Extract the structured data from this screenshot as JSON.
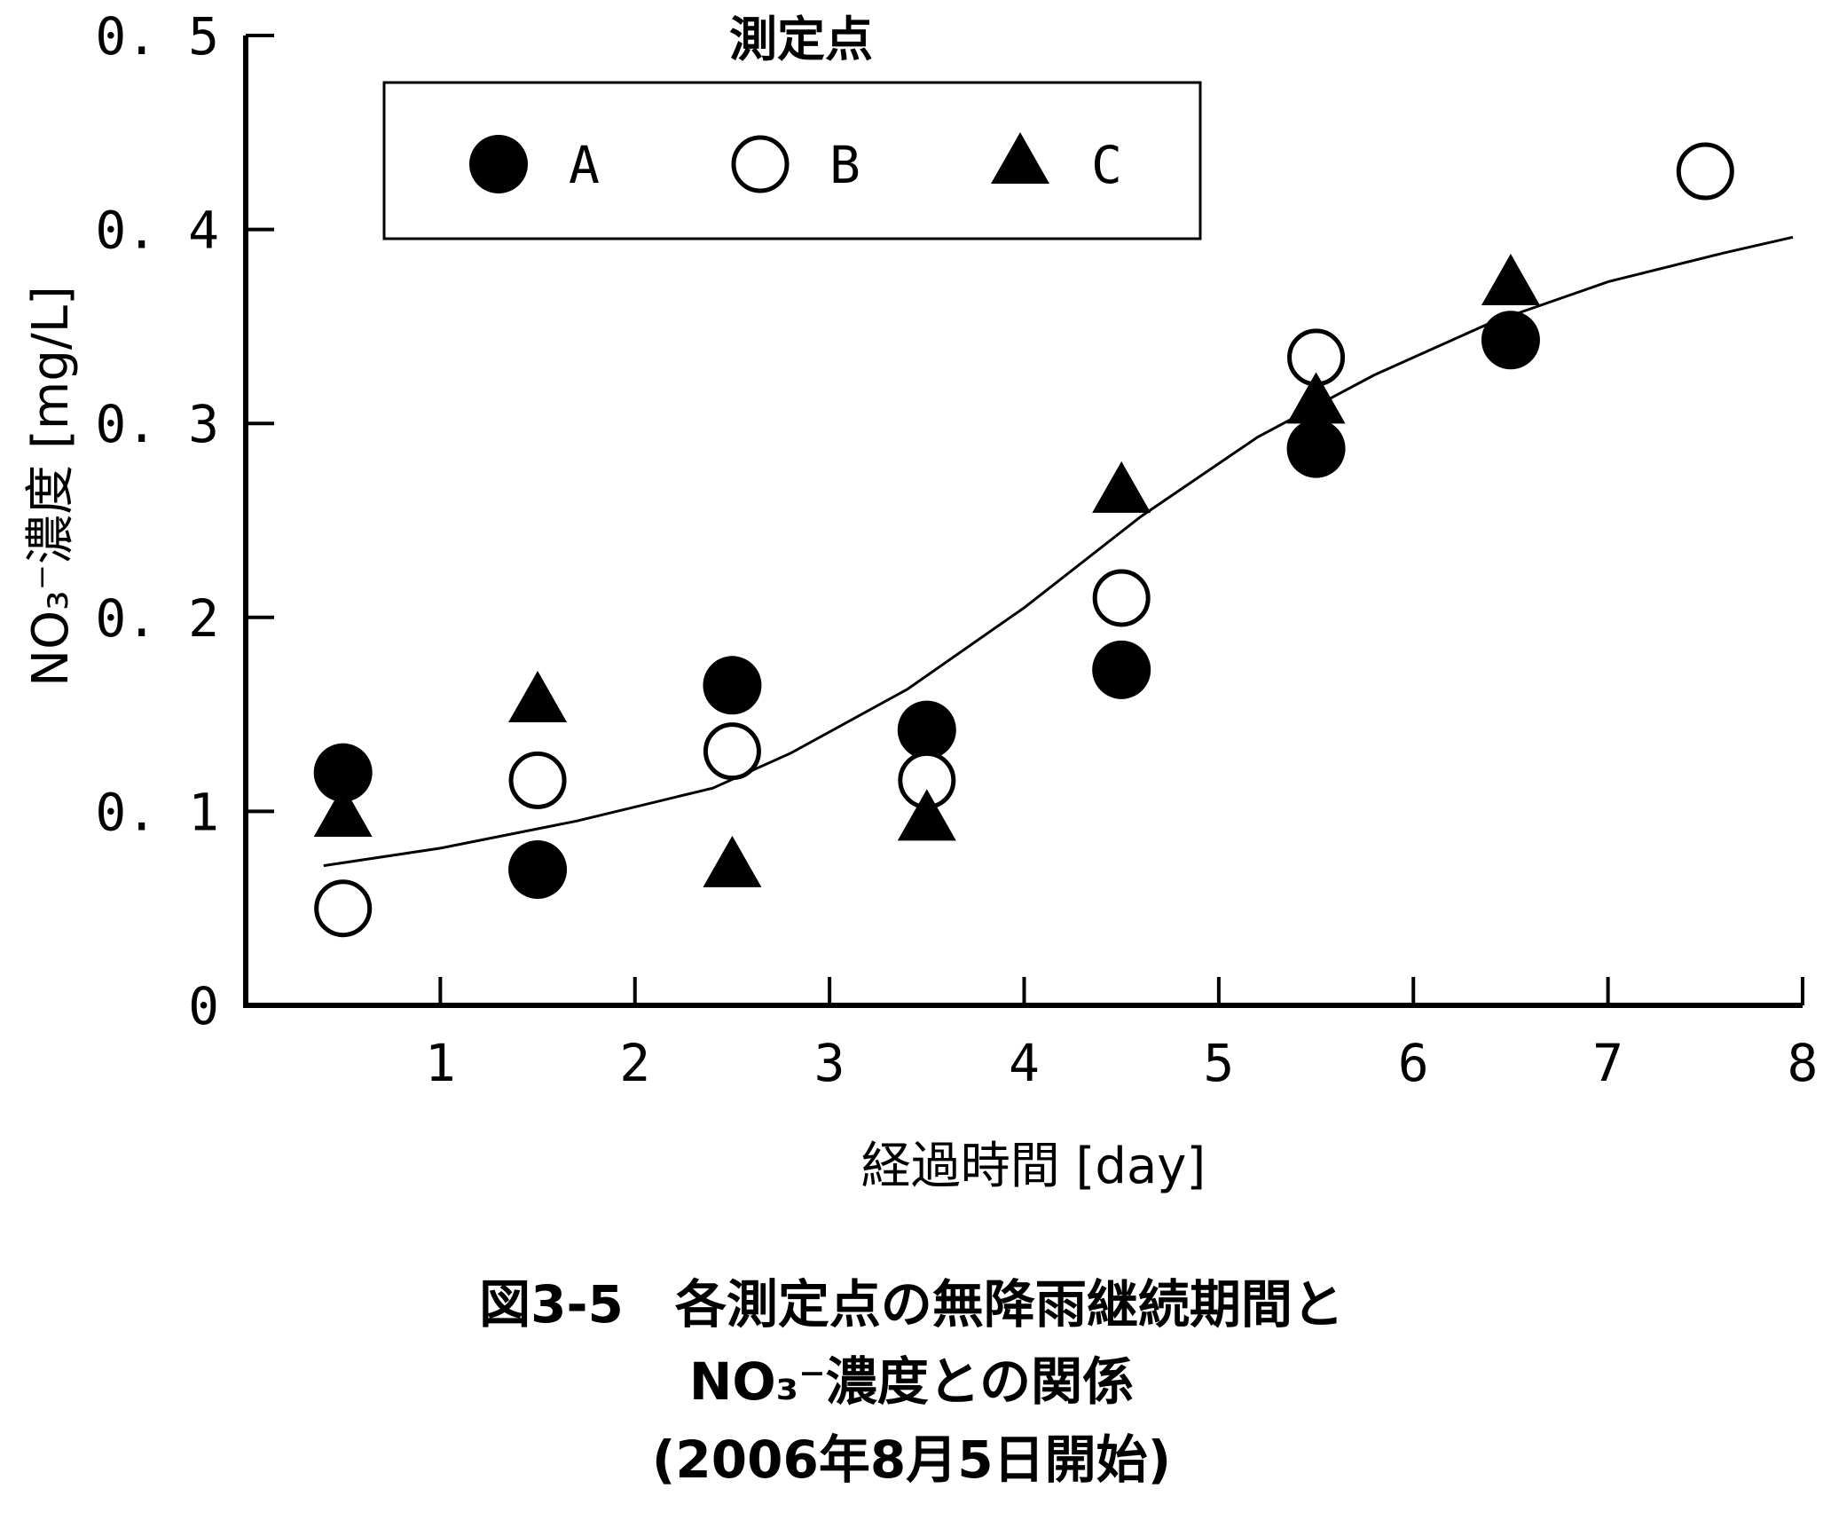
{
  "chart_data": {
    "type": "scatter",
    "legend": {
      "title": "測定点",
      "placement": "top-left"
    },
    "xlabel": "経過時間 [day]",
    "ylabel": "NO₃⁻濃度 [mg/L]",
    "xlim": [
      0,
      8
    ],
    "ylim": [
      0,
      0.5
    ],
    "xticks": [
      1,
      2,
      3,
      4,
      5,
      6,
      7,
      8
    ],
    "xtick_labels": [
      "1",
      "2",
      "3",
      "4",
      "5",
      "6",
      "7",
      "8"
    ],
    "yticks": [
      0,
      0.1,
      0.2,
      0.3,
      0.4,
      0.5
    ],
    "ytick_labels": [
      "0",
      "0. 1",
      "0. 2",
      "0. 3",
      "0. 4",
      "0. 5"
    ],
    "grid": false,
    "series": [
      {
        "name": "A",
        "marker": "filled-circle",
        "color": "#000000",
        "points": [
          {
            "x": 0.5,
            "y": 0.12
          },
          {
            "x": 1.5,
            "y": 0.07
          },
          {
            "x": 2.5,
            "y": 0.165
          },
          {
            "x": 3.5,
            "y": 0.142
          },
          {
            "x": 4.5,
            "y": 0.173
          },
          {
            "x": 5.5,
            "y": 0.287
          },
          {
            "x": 6.5,
            "y": 0.343
          }
        ]
      },
      {
        "name": "B",
        "marker": "open-circle",
        "color": "#000000",
        "points": [
          {
            "x": 0.5,
            "y": 0.05
          },
          {
            "x": 1.5,
            "y": 0.116
          },
          {
            "x": 2.5,
            "y": 0.131
          },
          {
            "x": 3.5,
            "y": 0.116
          },
          {
            "x": 4.5,
            "y": 0.21
          },
          {
            "x": 5.5,
            "y": 0.334
          },
          {
            "x": 7.5,
            "y": 0.43
          }
        ]
      },
      {
        "name": "C",
        "marker": "filled-triangle",
        "color": "#000000",
        "points": [
          {
            "x": 0.5,
            "y": 0.097
          },
          {
            "x": 1.5,
            "y": 0.156
          },
          {
            "x": 2.5,
            "y": 0.071
          },
          {
            "x": 3.5,
            "y": 0.095
          },
          {
            "x": 4.5,
            "y": 0.264
          },
          {
            "x": 5.5,
            "y": 0.31
          },
          {
            "x": 6.5,
            "y": 0.371
          }
        ]
      }
    ],
    "trend_line": {
      "points": [
        {
          "x": 0.4,
          "y": 0.072
        },
        {
          "x": 1.0,
          "y": 0.081
        },
        {
          "x": 1.7,
          "y": 0.095
        },
        {
          "x": 2.4,
          "y": 0.112
        },
        {
          "x": 2.8,
          "y": 0.13
        },
        {
          "x": 3.4,
          "y": 0.163
        },
        {
          "x": 4.0,
          "y": 0.205
        },
        {
          "x": 4.6,
          "y": 0.252
        },
        {
          "x": 5.2,
          "y": 0.293
        },
        {
          "x": 5.8,
          "y": 0.325
        },
        {
          "x": 6.4,
          "y": 0.352
        },
        {
          "x": 7.0,
          "y": 0.373
        },
        {
          "x": 7.6,
          "y": 0.388
        },
        {
          "x": 7.95,
          "y": 0.396
        }
      ]
    }
  },
  "caption": {
    "line1": "図3-5　各測定点の無降雨継続期間と",
    "line2": "NO₃⁻濃度との関係",
    "line3": "(2006年8月5日開始)"
  }
}
